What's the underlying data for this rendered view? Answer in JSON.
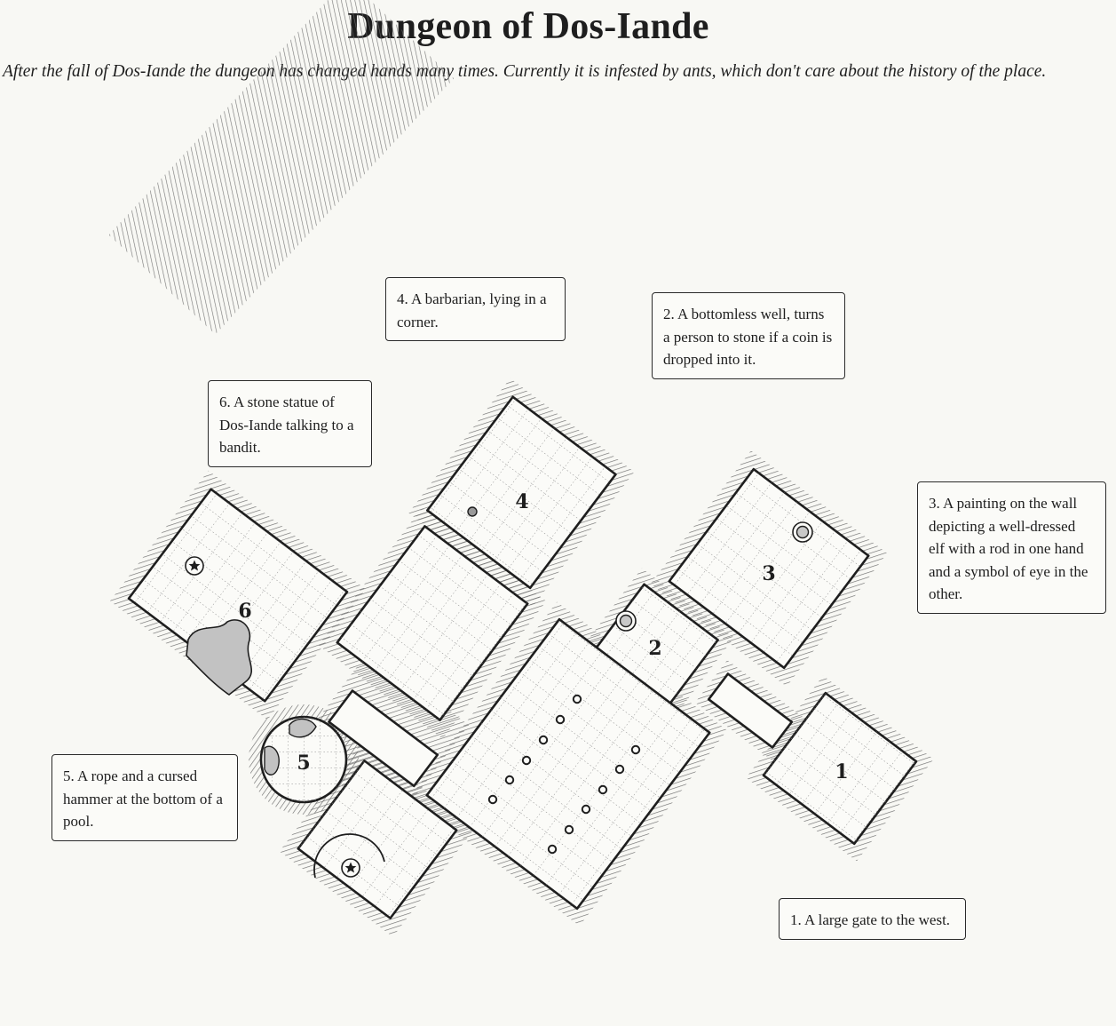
{
  "page": {
    "title": "Dungeon of Dos-Iande",
    "subtitle": "After the fall of Dos-Iande the dungeon has changed hands many times. Currently it is infested by ants, which don't care about the history of the place."
  },
  "rooms": [
    {
      "id": "1",
      "label": "1"
    },
    {
      "id": "2",
      "label": "2"
    },
    {
      "id": "3",
      "label": "3"
    },
    {
      "id": "4",
      "label": "4"
    },
    {
      "id": "5",
      "label": "5"
    },
    {
      "id": "6",
      "label": "6"
    }
  ],
  "notes": [
    {
      "id": "1",
      "text": "1. A large gate to the west."
    },
    {
      "id": "2",
      "text": "2. A bottomless well, turns a person to stone if a coin is dropped into it."
    },
    {
      "id": "3",
      "text": "3. A painting on the wall depicting a well-dressed elf with a rod in one hand and a symbol of eye in the other."
    },
    {
      "id": "4",
      "text": "4. A barbarian, lying in a corner."
    },
    {
      "id": "5",
      "text": "5. A rope and a cursed hammer at the bottom of a pool."
    },
    {
      "id": "6",
      "text": "6. A stone statue of Dos-Iande talking to a bandit."
    }
  ],
  "icons": {
    "statue": "star-in-circle-icon",
    "well": "double-circle-icon",
    "pillar": "ring-icon",
    "pool": "grey-blob"
  },
  "colors": {
    "background": "#f8f8f4",
    "ink": "#1e1e1e",
    "floor": "#fbfbf8",
    "hatch": "#7a7a7a",
    "water": "#c2c2c2"
  }
}
